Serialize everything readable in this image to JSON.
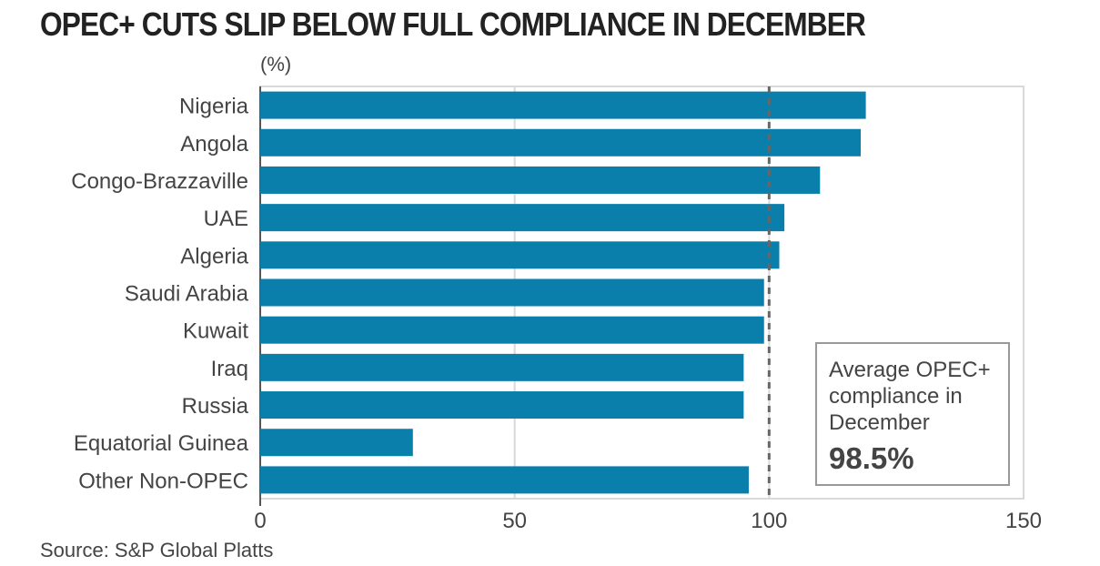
{
  "title": "OPEC+ CUTS SLIP BELOW FULL COMPLIANCE IN DECEMBER",
  "unit_label": "(%)",
  "source": "Source: S&P Global Platts",
  "colors": {
    "bar": "#0b7fab",
    "grid": "#d9d9d9",
    "reference_line": "#666666"
  },
  "annotation": {
    "text": "Average OPEC+ compliance in December",
    "value": "98.5%"
  },
  "chart_data": {
    "type": "bar",
    "orientation": "horizontal",
    "title": "OPEC+ CUTS SLIP BELOW FULL COMPLIANCE IN DECEMBER",
    "ylabel": "(%)",
    "categories": [
      "Nigeria",
      "Angola",
      "Congo-Brazzaville",
      "UAE",
      "Algeria",
      "Saudi Arabia",
      "Kuwait",
      "Iraq",
      "Russia",
      "Equatorial Guinea",
      "Other Non-OPEC"
    ],
    "values": [
      119,
      118,
      110,
      103,
      102,
      99,
      99,
      95,
      95,
      30,
      96
    ],
    "xlim": [
      0,
      150
    ],
    "xticks": [
      0,
      50,
      100,
      150
    ],
    "reference_line": 100,
    "grid": true
  }
}
